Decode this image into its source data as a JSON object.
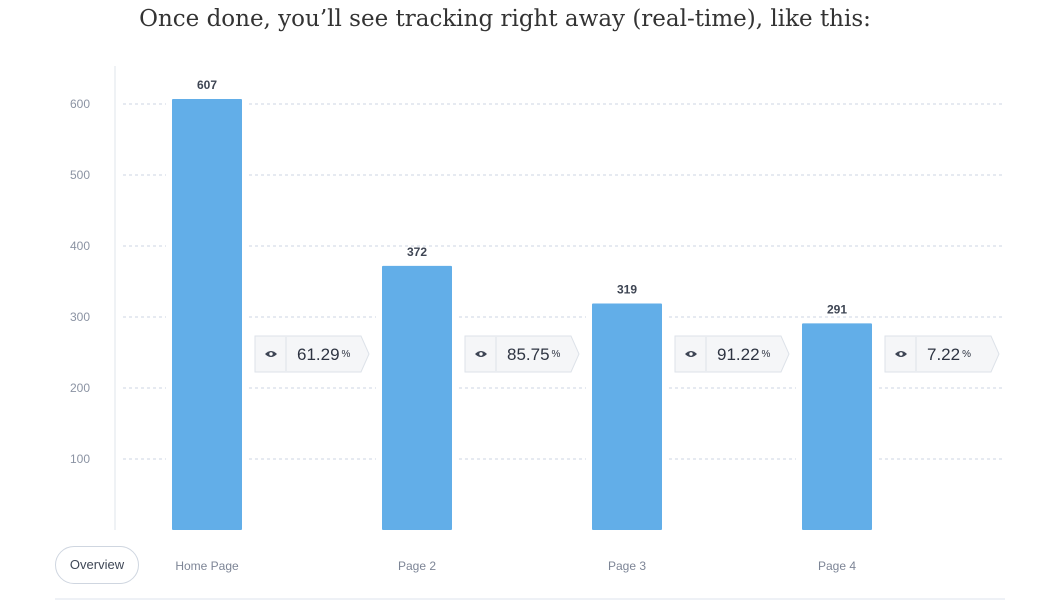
{
  "caption": "Once done, you’ll see tracking right away (real-time), like this:",
  "overview_label": "Overview",
  "colors": {
    "bar": "#62aee8",
    "grid": "#cdd6e3",
    "badge_bg": "#f5f6f8",
    "badge_border": "#dde2e9",
    "eye_icon": "#3d4454"
  },
  "chart_data": {
    "type": "bar",
    "categories": [
      "Home Page",
      "Page 2",
      "Page 3",
      "Page 4"
    ],
    "values": [
      607,
      372,
      319,
      291
    ],
    "ylim": [
      0,
      640
    ],
    "yticks": [
      100,
      200,
      300,
      400,
      500,
      600
    ],
    "grid": true,
    "conversion_badges": [
      {
        "value": "61.29",
        "unit": "%",
        "icon": "eye-icon"
      },
      {
        "value": "85.75",
        "unit": "%",
        "icon": "eye-icon"
      },
      {
        "value": "91.22",
        "unit": "%",
        "icon": "eye-icon"
      },
      {
        "value": "7.22",
        "unit": "%",
        "icon": "eye-icon"
      }
    ]
  }
}
